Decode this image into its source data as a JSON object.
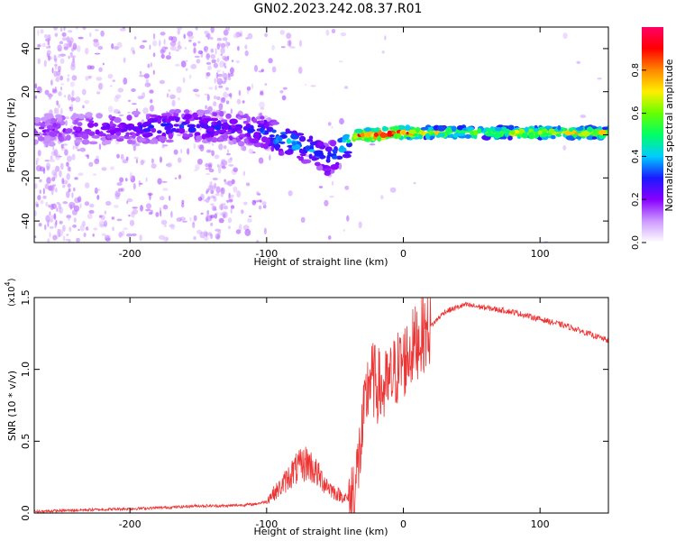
{
  "title": "GN02.2023.242.08.37.R01",
  "chart_data": [
    {
      "type": "heatmap",
      "xlabel": "Height of straight line (km)",
      "ylabel": "Frequency (Hz)",
      "xlim": [
        -270,
        150
      ],
      "ylim": [
        -50,
        50
      ],
      "x_ticks": [
        -200,
        -100,
        0,
        100
      ],
      "x_tick_labels": [
        "-200",
        "-100",
        "0",
        "100"
      ],
      "y_ticks": [
        -40,
        -20,
        0,
        20,
        40
      ],
      "y_tick_labels": [
        "-40",
        "-20",
        "0",
        "20",
        "40"
      ],
      "colorbar": {
        "label": "Normalized spectral amplitude",
        "range": [
          0,
          1
        ],
        "ticks": [
          0,
          0.2,
          0.4,
          0.6,
          0.8
        ],
        "tick_labels": [
          "0.0",
          "0.2",
          "0.4",
          "0.6",
          "0.8"
        ],
        "colors": [
          "#ffffff",
          "#cc99ff",
          "#8800ff",
          "#1a1aff",
          "#00ccff",
          "#00ff66",
          "#66ff00",
          "#ffee00",
          "#ff8800",
          "#ff0000",
          "#ff0066"
        ]
      },
      "ridge": {
        "x": [
          -270,
          -240,
          -200,
          -170,
          -150,
          -120,
          -100,
          -90,
          -80,
          -70,
          -60,
          -55,
          -50,
          -45,
          -40,
          -35,
          -30,
          -20,
          -10,
          0,
          20,
          50,
          80,
          100,
          150
        ],
        "frequency": [
          2,
          3,
          3,
          4,
          4,
          3,
          1,
          -2,
          -4,
          -6,
          -9,
          -12,
          -8,
          -6,
          -3,
          -1,
          0,
          0,
          1,
          1,
          1,
          1,
          1,
          1,
          1
        ],
        "amplitude": [
          0.15,
          0.18,
          0.22,
          0.25,
          0.25,
          0.22,
          0.28,
          0.35,
          0.35,
          0.32,
          0.3,
          0.28,
          0.32,
          0.38,
          0.5,
          0.65,
          0.8,
          0.88,
          0.9,
          0.75,
          0.6,
          0.55,
          0.6,
          0.65,
          0.6
        ]
      }
    },
    {
      "type": "line",
      "xlabel": "Height of straight line (km)",
      "ylabel": "SNR (10 * v/v)",
      "y_multiplier": "(x10",
      "y_multiplier_exp": "4",
      "y_multiplier_close": ")",
      "xlim": [
        -270,
        150
      ],
      "ylim": [
        0,
        1.5
      ],
      "x_ticks": [
        -200,
        -100,
        0,
        100
      ],
      "x_tick_labels": [
        "-200",
        "-100",
        "0",
        "100"
      ],
      "y_ticks": [
        0,
        0.5,
        1.0,
        1.5
      ],
      "y_tick_labels": [
        "0.0",
        "0.5",
        "1.0",
        "1.5"
      ],
      "series": [
        {
          "color": "#ee3333",
          "x": [
            -270,
            -240,
            -200,
            -170,
            -150,
            -130,
            -110,
            -100,
            -90,
            -80,
            -70,
            -60,
            -50,
            -40,
            -35,
            -30,
            -25,
            -20,
            -15,
            -10,
            -5,
            0,
            10,
            20,
            30,
            45,
            60,
            80,
            100,
            120,
            150
          ],
          "y": [
            0.01,
            0.02,
            0.03,
            0.04,
            0.05,
            0.05,
            0.06,
            0.08,
            0.15,
            0.25,
            0.3,
            0.2,
            0.12,
            0.08,
            0.2,
            0.55,
            0.95,
            0.9,
            0.85,
            0.9,
            1.0,
            1.05,
            1.2,
            1.3,
            1.4,
            1.45,
            1.43,
            1.4,
            1.35,
            1.3,
            1.2
          ]
        }
      ]
    }
  ]
}
